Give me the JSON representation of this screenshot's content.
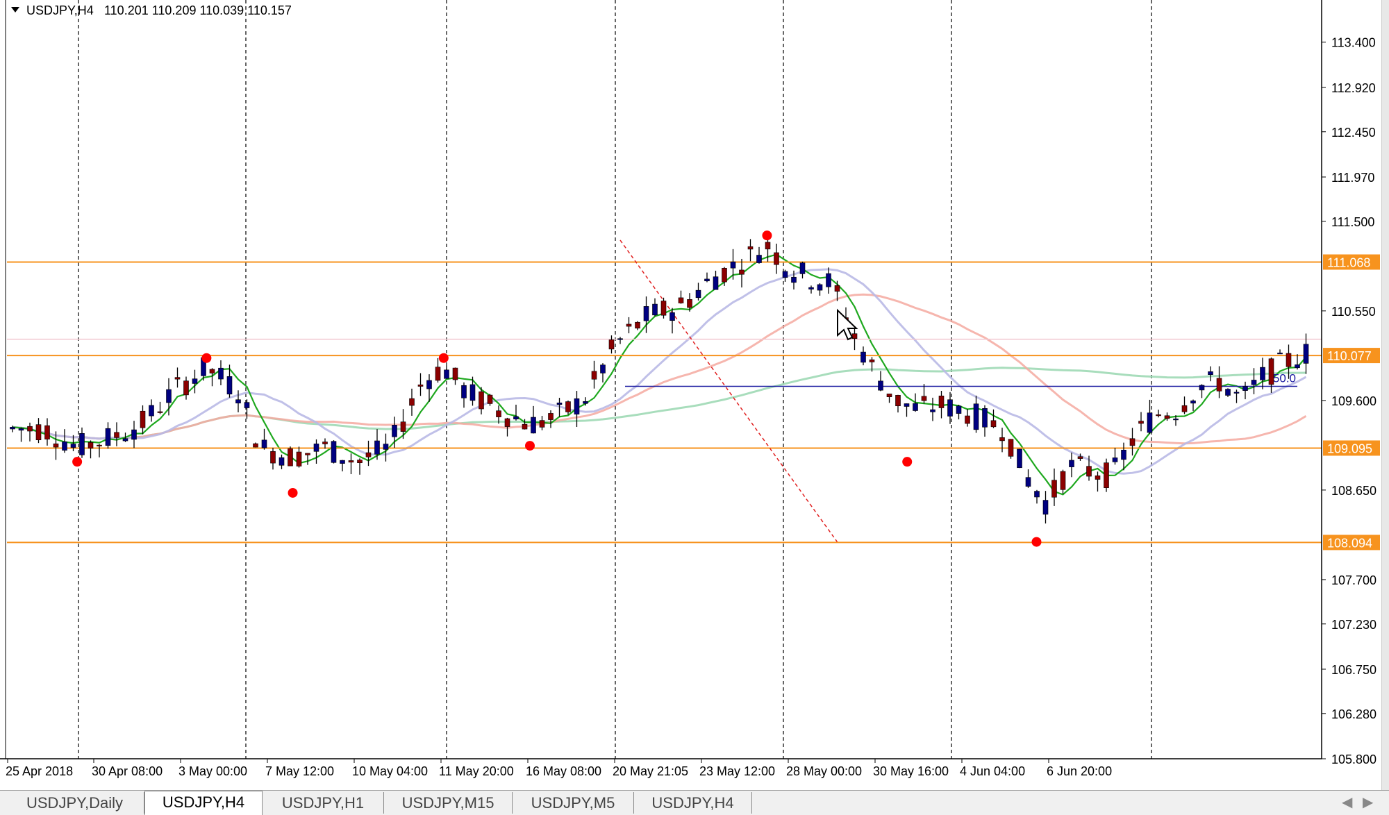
{
  "symbol_header": {
    "symbol": "USDJPY,H4",
    "ohlc": "110.201 110.209 110.039 110.157"
  },
  "price_axis": {
    "ticks": [
      "113.400",
      "112.920",
      "112.450",
      "111.970",
      "111.500",
      "110.550",
      "109.600",
      "108.650",
      "107.700",
      "107.230",
      "106.750",
      "106.280",
      "105.800"
    ],
    "tick_values": [
      113.4,
      112.92,
      112.45,
      111.97,
      111.5,
      110.55,
      109.6,
      108.65,
      107.7,
      107.23,
      106.75,
      106.28,
      105.8
    ]
  },
  "time_axis": {
    "labels": [
      "25 Apr 2018",
      "30 Apr 08:00",
      "3 May 00:00",
      "7 May 12:00",
      "10 May 04:00",
      "11 May 20:00",
      "16 May 08:00",
      "20 May 21:05",
      "23 May 12:00",
      "28 May 00:00",
      "30 May 16:00",
      "4 Jun 04:00",
      "6 Jun 20:00"
    ]
  },
  "price_tags": {
    "level_1": {
      "text": "111.068",
      "color": "#f7931e",
      "value": 111.068
    },
    "current": {
      "text": "110.077",
      "color": "#f7931e",
      "value": 110.077
    },
    "level_2": {
      "text": "109.095",
      "color": "#f7931e",
      "value": 109.095
    },
    "level_3": {
      "text": "108.094",
      "color": "#f7931e",
      "value": 108.094
    }
  },
  "fib_label": "50.0",
  "tabs": [
    {
      "label": "USDJPY,Daily",
      "active": false
    },
    {
      "label": "USDJPY,H4",
      "active": true
    },
    {
      "label": "USDJPY,H1",
      "active": false
    },
    {
      "label": "USDJPY,M15",
      "active": false
    },
    {
      "label": "USDJPY,M5",
      "active": false
    },
    {
      "label": "USDJPY,H4",
      "active": false
    }
  ],
  "tab_arrows": {
    "left": "◀",
    "right": "▶"
  },
  "chart_data": {
    "type": "candlestick",
    "ylim": [
      105.8,
      113.7
    ],
    "candle_count": 150,
    "horizontal_levels": [
      111.068,
      110.077,
      109.095,
      108.094
    ],
    "fib_level_value": 109.75,
    "swing_points": [
      {
        "i": 6,
        "y": 108.95
      },
      {
        "i": 18,
        "y": 110.05
      },
      {
        "i": 26,
        "y": 108.62
      },
      {
        "i": 40,
        "y": 110.05
      },
      {
        "i": 48,
        "y": 109.12
      },
      {
        "i": 70,
        "y": 111.35
      },
      {
        "i": 83,
        "y": 108.95
      },
      {
        "i": 95,
        "y": 108.1
      }
    ],
    "price_path": [
      [
        0,
        109.3
      ],
      [
        3,
        109.3
      ],
      [
        6,
        109.1
      ],
      [
        9,
        109.2
      ],
      [
        12,
        109.35
      ],
      [
        15,
        109.7
      ],
      [
        18,
        109.95
      ],
      [
        21,
        109.7
      ],
      [
        23,
        109.1
      ],
      [
        26,
        109.0
      ],
      [
        29,
        109.1
      ],
      [
        32,
        108.95
      ],
      [
        35,
        109.1
      ],
      [
        38,
        109.8
      ],
      [
        40,
        109.95
      ],
      [
        42,
        109.7
      ],
      [
        45,
        109.5
      ],
      [
        48,
        109.35
      ],
      [
        50,
        109.4
      ],
      [
        53,
        109.6
      ],
      [
        56,
        110.2
      ],
      [
        59,
        110.5
      ],
      [
        62,
        110.6
      ],
      [
        65,
        110.9
      ],
      [
        68,
        111.1
      ],
      [
        70,
        111.25
      ],
      [
        72,
        111.0
      ],
      [
        74,
        110.9
      ],
      [
        76,
        110.85
      ],
      [
        78,
        110.3
      ],
      [
        80,
        109.9
      ],
      [
        82,
        109.6
      ],
      [
        84,
        109.5
      ],
      [
        86,
        109.55
      ],
      [
        88,
        109.5
      ],
      [
        90,
        109.4
      ],
      [
        92,
        109.3
      ],
      [
        94,
        108.8
      ],
      [
        96,
        108.5
      ],
      [
        98,
        108.9
      ],
      [
        100,
        108.85
      ],
      [
        102,
        108.8
      ],
      [
        104,
        109.2
      ],
      [
        106,
        109.45
      ],
      [
        108,
        109.5
      ],
      [
        110,
        109.75
      ],
      [
        112,
        109.8
      ],
      [
        114,
        109.6
      ],
      [
        116,
        109.85
      ],
      [
        118,
        110.0
      ],
      [
        120,
        110.1
      ]
    ]
  }
}
